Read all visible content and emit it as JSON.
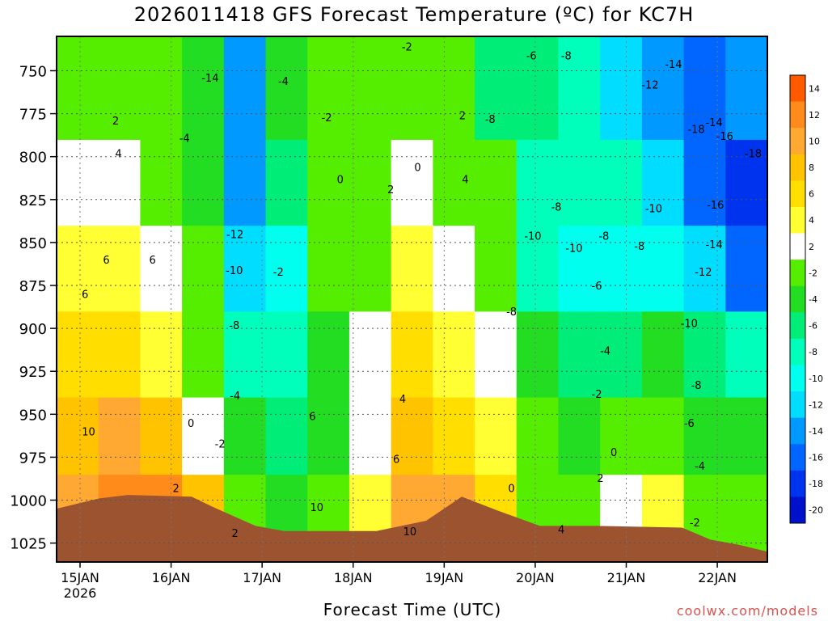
{
  "title": "2026011418 GFS Forecast Temperature (ºC) for KC7H",
  "credit": "coolwx.com/models",
  "chart_data": {
    "type": "heatmap",
    "title": "2026011418 GFS Forecast Temperature (ºC) for KC7H",
    "xlabel": "Forecast Time (UTC)",
    "ylabel": "",
    "x_ticks": [
      "15JAN",
      "16JAN",
      "17JAN",
      "18JAN",
      "19JAN",
      "20JAN",
      "21JAN",
      "22JAN"
    ],
    "x_year_label": "2026",
    "x_range": [
      "2026-01-14T18:00",
      "2026-01-22T12:00"
    ],
    "y_ticks": [
      750,
      775,
      800,
      825,
      850,
      875,
      900,
      925,
      950,
      975,
      1000,
      1025
    ],
    "y_range_hpa": [
      1036,
      730
    ],
    "grid": true,
    "legend": "right",
    "colorbar": {
      "levels": [
        14,
        12,
        10,
        8,
        6,
        4,
        2,
        -2,
        -4,
        -6,
        -8,
        -10,
        -12,
        -14,
        -16,
        -18,
        -20
      ],
      "colors": [
        "#ff5a00",
        "#ff8c1a",
        "#ffa933",
        "#ffc300",
        "#ffde00",
        "#ffff33",
        "#ffffff",
        "#55ee00",
        "#22dd22",
        "#00ee77",
        "#00ffbb",
        "#00ffee",
        "#00ddff",
        "#0099ff",
        "#0066ff",
        "#0033ee",
        "#0011cc"
      ]
    },
    "series": [
      {
        "values": [
          10,
          12,
          12,
          8,
          -2,
          -4,
          -2,
          4,
          10,
          10,
          6,
          0,
          0,
          2,
          4,
          -2,
          -2
        ]
      },
      {
        "values": [
          8,
          10,
          8,
          2,
          -4,
          -6,
          -4,
          2,
          8,
          6,
          4,
          -2,
          -4,
          -2,
          0,
          -4,
          -4
        ]
      },
      {
        "values": [
          6,
          6,
          4,
          0,
          -8,
          -8,
          -4,
          2,
          6,
          4,
          2,
          -4,
          -6,
          -6,
          -4,
          -6,
          -8
        ]
      },
      {
        "values": [
          4,
          4,
          2,
          -2,
          -12,
          -10,
          -2,
          0,
          4,
          2,
          0,
          -8,
          -10,
          -10,
          -10,
          -12,
          -16
        ]
      },
      {
        "values": [
          2,
          2,
          0,
          -4,
          -14,
          -6,
          -2,
          0,
          2,
          0,
          -2,
          -8,
          -8,
          -8,
          -12,
          -16,
          -18
        ]
      },
      {
        "values": [
          0,
          0,
          -2,
          -4,
          -14,
          -4,
          -2,
          -2,
          0,
          -2,
          -6,
          -6,
          -8,
          -12,
          -14,
          -16,
          -14
        ]
      }
    ],
    "contour_labels": [
      {
        "text": "10",
        "t": 0.045,
        "p": 960
      },
      {
        "text": "6",
        "t": 0.04,
        "p": 880
      },
      {
        "text": "6",
        "t": 0.07,
        "p": 860
      },
      {
        "text": "4",
        "t": 0.087,
        "p": 798
      },
      {
        "text": "2",
        "t": 0.083,
        "p": 779
      },
      {
        "text": "2",
        "t": 0.168,
        "p": 993
      },
      {
        "text": "0",
        "t": 0.189,
        "p": 955
      },
      {
        "text": "-2",
        "t": 0.23,
        "p": 967
      },
      {
        "text": "2",
        "t": 0.251,
        "p": 1019
      },
      {
        "text": "-4",
        "t": 0.18,
        "p": 789
      },
      {
        "text": "-14",
        "t": 0.216,
        "p": 754
      },
      {
        "text": "-12",
        "t": 0.251,
        "p": 845
      },
      {
        "text": "-10",
        "t": 0.25,
        "p": 866
      },
      {
        "text": "-8",
        "t": 0.25,
        "p": 898
      },
      {
        "text": "-4",
        "t": 0.251,
        "p": 939
      },
      {
        "text": "-4",
        "t": 0.319,
        "p": 756
      },
      {
        "text": "-2",
        "t": 0.38,
        "p": 777
      },
      {
        "text": "-2",
        "t": 0.312,
        "p": 867
      },
      {
        "text": "0",
        "t": 0.399,
        "p": 813
      },
      {
        "text": "0",
        "t": 0.508,
        "p": 806
      },
      {
        "text": "2",
        "t": 0.47,
        "p": 819
      },
      {
        "text": "-2",
        "t": 0.493,
        "p": 736
      },
      {
        "text": "2",
        "t": 0.571,
        "p": 776
      },
      {
        "text": "4",
        "t": 0.575,
        "p": 813
      },
      {
        "text": "6",
        "t": 0.36,
        "p": 951
      },
      {
        "text": "4",
        "t": 0.487,
        "p": 941
      },
      {
        "text": "6",
        "t": 0.478,
        "p": 976
      },
      {
        "text": "10",
        "t": 0.366,
        "p": 1004
      },
      {
        "text": "10",
        "t": 0.497,
        "p": 1018
      },
      {
        "text": "-8",
        "t": 0.61,
        "p": 778
      },
      {
        "text": "-6",
        "t": 0.668,
        "p": 741
      },
      {
        "text": "-8",
        "t": 0.717,
        "p": 741
      },
      {
        "text": "-14",
        "t": 0.868,
        "p": 746
      },
      {
        "text": "-12",
        "t": 0.835,
        "p": 758
      },
      {
        "text": "-14",
        "t": 0.925,
        "p": 780
      },
      {
        "text": "-18",
        "t": 0.9,
        "p": 784
      },
      {
        "text": "-16",
        "t": 0.94,
        "p": 788
      },
      {
        "text": "-18",
        "t": 0.98,
        "p": 798
      },
      {
        "text": "-16",
        "t": 0.927,
        "p": 828
      },
      {
        "text": "-14",
        "t": 0.925,
        "p": 851
      },
      {
        "text": "-12",
        "t": 0.91,
        "p": 867
      },
      {
        "text": "-10",
        "t": 0.89,
        "p": 897
      },
      {
        "text": "-8",
        "t": 0.9,
        "p": 933
      },
      {
        "text": "-6",
        "t": 0.89,
        "p": 955
      },
      {
        "text": "-4",
        "t": 0.905,
        "p": 980
      },
      {
        "text": "-2",
        "t": 0.898,
        "p": 1013
      },
      {
        "text": "-10",
        "t": 0.84,
        "p": 830
      },
      {
        "text": "-8",
        "t": 0.82,
        "p": 852
      },
      {
        "text": "-8",
        "t": 0.77,
        "p": 846
      },
      {
        "text": "-10",
        "t": 0.728,
        "p": 853
      },
      {
        "text": "-10",
        "t": 0.67,
        "p": 846
      },
      {
        "text": "-8",
        "t": 0.703,
        "p": 829
      },
      {
        "text": "-8",
        "t": 0.64,
        "p": 890
      },
      {
        "text": "-6",
        "t": 0.76,
        "p": 875
      },
      {
        "text": "-4",
        "t": 0.772,
        "p": 913
      },
      {
        "text": "-2",
        "t": 0.76,
        "p": 938
      },
      {
        "text": "0",
        "t": 0.784,
        "p": 972
      },
      {
        "text": "2",
        "t": 0.765,
        "p": 987
      },
      {
        "text": "0",
        "t": 0.64,
        "p": 993
      },
      {
        "text": "4",
        "t": 0.71,
        "p": 1017
      },
      {
        "text": "6",
        "t": 0.135,
        "p": 860
      }
    ]
  }
}
